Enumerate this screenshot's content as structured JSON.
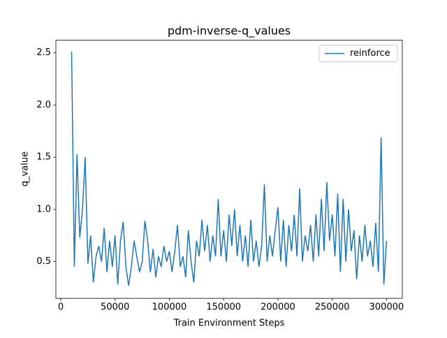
{
  "chart_data": {
    "type": "line",
    "title": "pdm-inverse-q_values",
    "xlabel": "Train Environment Steps",
    "ylabel": "q_value",
    "x": [
      10000,
      12500,
      15000,
      17500,
      20000,
      22500,
      25000,
      27500,
      30000,
      32500,
      35000,
      37500,
      40000,
      42500,
      45000,
      47500,
      50000,
      52500,
      55000,
      57500,
      60000,
      62500,
      65000,
      67500,
      70000,
      72500,
      75000,
      77500,
      80000,
      82500,
      85000,
      87500,
      90000,
      92500,
      95000,
      97500,
      100000,
      102500,
      105000,
      107500,
      110000,
      112500,
      115000,
      117500,
      120000,
      122500,
      125000,
      127500,
      130000,
      132500,
      135000,
      137500,
      140000,
      142500,
      145000,
      147500,
      150000,
      152500,
      155000,
      157500,
      160000,
      162500,
      165000,
      167500,
      170000,
      172500,
      175000,
      177500,
      180000,
      182500,
      185000,
      187500,
      190000,
      192500,
      195000,
      197500,
      200000,
      202500,
      205000,
      207500,
      210000,
      212500,
      215000,
      217500,
      220000,
      222500,
      225000,
      227500,
      230000,
      232500,
      235000,
      237500,
      240000,
      242500,
      245000,
      247500,
      250000,
      252500,
      255000,
      257500,
      260000,
      262500,
      265000,
      267500,
      270000,
      272500,
      275000,
      277500,
      280000,
      282500,
      285000,
      287500,
      290000,
      292500,
      295000,
      297500,
      300000
    ],
    "series": [
      {
        "name": "reinforce",
        "color": "#1f77b4",
        "values": [
          2.51,
          0.45,
          1.53,
          0.73,
          1.0,
          1.5,
          0.48,
          0.75,
          0.3,
          0.55,
          0.65,
          0.5,
          0.82,
          0.4,
          0.7,
          0.45,
          0.75,
          0.28,
          0.7,
          0.88,
          0.45,
          0.27,
          0.45,
          0.7,
          0.55,
          0.4,
          0.5,
          0.89,
          0.7,
          0.4,
          0.62,
          0.35,
          0.55,
          0.45,
          0.65,
          0.5,
          0.6,
          0.4,
          0.6,
          0.85,
          0.45,
          0.55,
          0.35,
          0.8,
          0.5,
          0.3,
          0.7,
          0.55,
          0.9,
          0.6,
          0.85,
          0.5,
          0.75,
          0.55,
          1.1,
          0.55,
          0.8,
          0.5,
          0.95,
          0.65,
          1.0,
          0.55,
          0.85,
          0.5,
          0.75,
          0.45,
          0.9,
          0.5,
          0.7,
          0.45,
          0.65,
          1.24,
          0.5,
          0.75,
          0.55,
          0.8,
          1.02,
          0.5,
          0.9,
          0.45,
          0.85,
          0.6,
          0.95,
          0.55,
          1.2,
          0.5,
          0.75,
          0.6,
          0.85,
          0.5,
          0.95,
          0.55,
          1.1,
          0.6,
          1.26,
          0.7,
          0.95,
          0.55,
          1.15,
          0.4,
          1.1,
          0.5,
          1.0,
          0.6,
          0.8,
          0.33,
          0.75,
          0.5,
          0.85,
          0.55,
          0.7,
          0.45,
          0.87,
          0.4,
          1.69,
          0.28,
          0.7
        ]
      }
    ],
    "xlim": [
      -4500,
      314500
    ],
    "ylim": [
      0.148,
      2.62
    ],
    "xticks": [
      0,
      50000,
      100000,
      150000,
      200000,
      250000,
      300000
    ],
    "yticks": [
      0.5,
      {
        "value": 1.0,
        "label": "1.0"
      },
      1.5,
      {
        "value": 2.0,
        "label": "2.0"
      },
      2.5
    ],
    "legend": "upper right"
  }
}
